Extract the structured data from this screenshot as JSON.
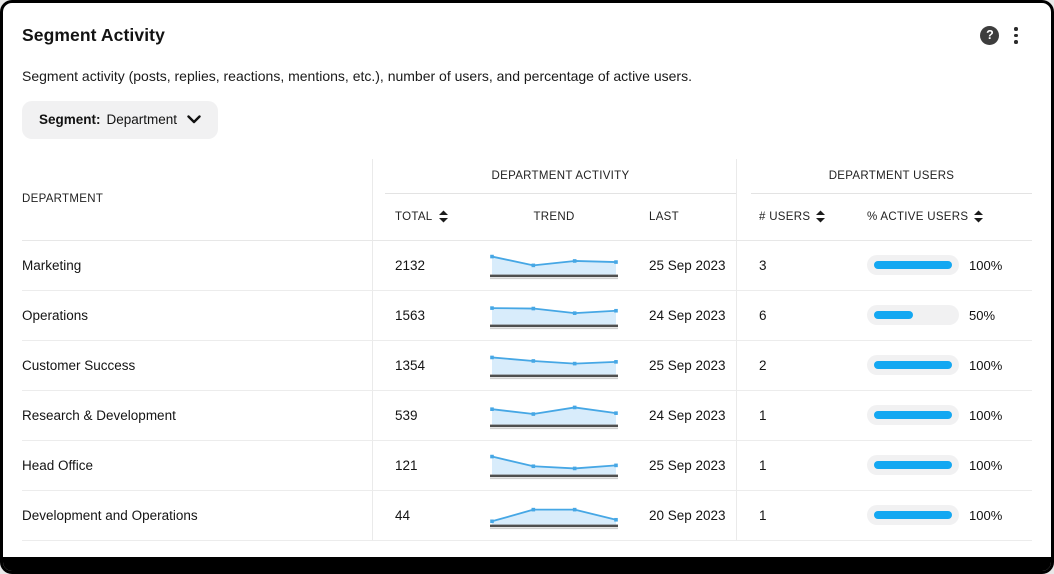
{
  "header": {
    "title": "Segment Activity",
    "description": "Segment activity (posts, replies, reactions, mentions, etc.), number of users, and percentage of active users."
  },
  "segment_filter": {
    "label": "Segment:",
    "value": "Department"
  },
  "table": {
    "department_column_header": "DEPARTMENT",
    "groups": {
      "activity": {
        "label": "DEPARTMENT ACTIVITY",
        "columns": [
          {
            "label": "TOTAL",
            "sortable": true
          },
          {
            "label": "TREND",
            "sortable": false
          },
          {
            "label": "LAST",
            "sortable": false
          }
        ]
      },
      "users": {
        "label": "DEPARTMENT USERS",
        "columns": [
          {
            "label": "# USERS",
            "sortable": true
          },
          {
            "label": "% ACTIVE USERS",
            "sortable": true
          }
        ]
      }
    },
    "rows": [
      {
        "department": "Marketing",
        "total": "2132",
        "trend": [
          0.82,
          0.42,
          0.62,
          0.57
        ],
        "last": "25 Sep 2023",
        "users": "3",
        "active_percent": 100,
        "active_label": "100%"
      },
      {
        "department": "Operations",
        "total": "1563",
        "trend": [
          0.75,
          0.73,
          0.52,
          0.63
        ],
        "last": "24 Sep 2023",
        "users": "6",
        "active_percent": 50,
        "active_label": "50%"
      },
      {
        "department": "Customer Success",
        "total": "1354",
        "trend": [
          0.78,
          0.62,
          0.5,
          0.58
        ],
        "last": "25 Sep 2023",
        "users": "2",
        "active_percent": 100,
        "active_label": "100%"
      },
      {
        "department": "Research & Development",
        "total": "539",
        "trend": [
          0.7,
          0.48,
          0.78,
          0.52
        ],
        "last": "24 Sep 2023",
        "users": "1",
        "active_percent": 100,
        "active_label": "100%"
      },
      {
        "department": "Head Office",
        "total": "121",
        "trend": [
          0.82,
          0.38,
          0.28,
          0.42
        ],
        "last": "25 Sep 2023",
        "users": "1",
        "active_percent": 100,
        "active_label": "100%"
      },
      {
        "department": "Development and Operations",
        "total": "44",
        "trend": [
          0.15,
          0.68,
          0.68,
          0.22
        ],
        "last": "20 Sep 2023",
        "users": "1",
        "active_percent": 100,
        "active_label": "100%"
      }
    ]
  },
  "chart_data": [
    {
      "type": "area",
      "title": "Marketing activity trend",
      "x": [
        1,
        2,
        3,
        4
      ],
      "values": [
        0.82,
        0.42,
        0.62,
        0.57
      ],
      "ylim": [
        0,
        1
      ],
      "grid": false,
      "legend": "none"
    },
    {
      "type": "area",
      "title": "Operations activity trend",
      "x": [
        1,
        2,
        3,
        4
      ],
      "values": [
        0.75,
        0.73,
        0.52,
        0.63
      ],
      "ylim": [
        0,
        1
      ],
      "grid": false,
      "legend": "none"
    },
    {
      "type": "area",
      "title": "Customer Success activity trend",
      "x": [
        1,
        2,
        3,
        4
      ],
      "values": [
        0.78,
        0.62,
        0.5,
        0.58
      ],
      "ylim": [
        0,
        1
      ],
      "grid": false,
      "legend": "none"
    },
    {
      "type": "area",
      "title": "Research & Development activity trend",
      "x": [
        1,
        2,
        3,
        4
      ],
      "values": [
        0.7,
        0.48,
        0.78,
        0.52
      ],
      "ylim": [
        0,
        1
      ],
      "grid": false,
      "legend": "none"
    },
    {
      "type": "area",
      "title": "Head Office activity trend",
      "x": [
        1,
        2,
        3,
        4
      ],
      "values": [
        0.82,
        0.38,
        0.28,
        0.42
      ],
      "ylim": [
        0,
        1
      ],
      "grid": false,
      "legend": "none"
    },
    {
      "type": "area",
      "title": "Development and Operations activity trend",
      "x": [
        1,
        2,
        3,
        4
      ],
      "values": [
        0.15,
        0.68,
        0.68,
        0.22
      ],
      "ylim": [
        0,
        1
      ],
      "grid": false,
      "legend": "none"
    }
  ],
  "icons": {
    "help": "question-mark-icon",
    "menu": "kebab-menu-icon",
    "chevron": "chevron-down-icon",
    "sort": "sort-arrows-icon"
  },
  "colors": {
    "accent_blue": "#14a8f2",
    "sparkline_line": "#46a7e5",
    "sparkline_fill": "#d8ecfb",
    "sparkline_baseline": "#4f4f4f",
    "bar_track": "#f1f1f2"
  }
}
